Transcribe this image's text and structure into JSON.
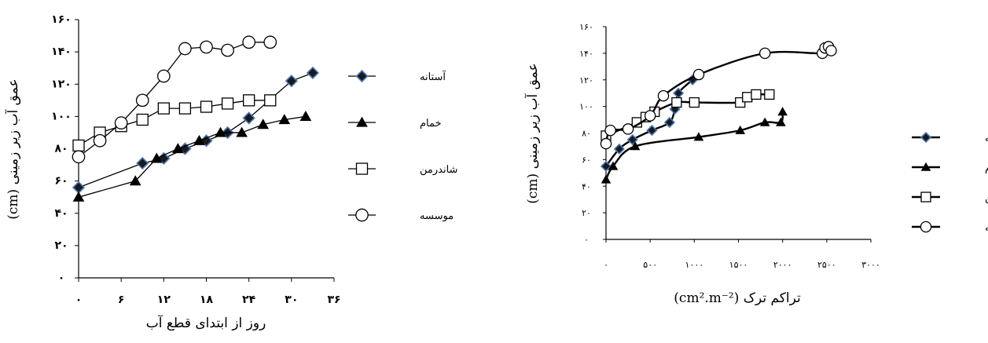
{
  "chart_data": [
    {
      "type": "line",
      "xlabel": "روز از ابتدای قطع آب",
      "ylabel": "عمق آب زیر زمینی (cm)",
      "xlim": [
        0,
        36
      ],
      "ylim": [
        0,
        160
      ],
      "x_ticks": [
        0,
        6,
        12,
        18,
        24,
        30,
        36
      ],
      "y_ticks": [
        0,
        20,
        40,
        60,
        80,
        100,
        120,
        140,
        160
      ],
      "x_tick_labels": [
        "۰",
        "۶",
        "۱۲",
        "۱۸",
        "۲۴",
        "۳۰",
        "۳۶"
      ],
      "y_tick_labels": [
        "۰",
        "۲۰",
        "۴۰",
        "۶۰",
        "۸۰",
        "۱۰۰",
        "۱۲۰",
        "۱۴۰",
        "۱۶۰"
      ],
      "legend_position": "right",
      "series": [
        {
          "name": "آستانه",
          "marker": "diamond",
          "x": [
            0,
            9,
            12,
            15,
            18,
            21,
            24,
            30,
            33
          ],
          "y": [
            56,
            71,
            74,
            80,
            85,
            90,
            99,
            122,
            127
          ]
        },
        {
          "name": "خمام",
          "marker": "triangle",
          "x": [
            0,
            8,
            11,
            14,
            17,
            20,
            23,
            26,
            29,
            32
          ],
          "y": [
            50,
            60,
            74,
            80,
            85,
            90,
            90,
            95,
            98,
            100
          ]
        },
        {
          "name": "شاندرمن",
          "marker": "square",
          "x": [
            0,
            3,
            6,
            9,
            12,
            15,
            18,
            21,
            24,
            27
          ],
          "y": [
            82,
            90,
            94,
            98,
            105,
            105,
            106,
            108,
            110,
            110
          ]
        },
        {
          "name": "موسسه",
          "marker": "circle",
          "x": [
            0,
            3,
            6,
            9,
            12,
            15,
            18,
            21,
            24,
            27
          ],
          "y": [
            75,
            85,
            96,
            110,
            125,
            142,
            143,
            141,
            146,
            146
          ]
        }
      ]
    },
    {
      "type": "line",
      "xlabel": "تراکم ترک (cm².m⁻²)",
      "ylabel": "عمق آب زیر زمینی (cm)",
      "xlim": [
        0,
        3000
      ],
      "ylim": [
        0,
        160
      ],
      "x_ticks": [
        0,
        500,
        1000,
        1500,
        2000,
        2500,
        3000
      ],
      "y_ticks": [
        0,
        20,
        40,
        60,
        80,
        100,
        120,
        140,
        160
      ],
      "x_tick_labels": [
        "۰",
        "۵۰۰",
        "۱۰۰۰",
        "۱۵۰۰",
        "۲۰۰۰",
        "۲۵۰۰",
        "۳۰۰۰"
      ],
      "y_tick_labels": [
        "۰",
        "۲۰",
        "۴۰",
        "۶۰",
        "۸۰",
        "۱۰۰",
        "۱۲۰",
        "۱۴۰",
        "۱۶۰"
      ],
      "legend_position": "right",
      "series": [
        {
          "name": "آستانه",
          "marker": "diamond",
          "x": [
            0,
            150,
            300,
            520,
            720,
            780,
            820,
            980
          ],
          "y": [
            55,
            68,
            75,
            82,
            88,
            98,
            110,
            120
          ]
        },
        {
          "name": "خمام",
          "marker": "triangle",
          "x": [
            0,
            80,
            330,
            1050,
            1520,
            1800,
            1980,
            2000
          ],
          "y": [
            45,
            55,
            70,
            77,
            82,
            88,
            88,
            96
          ]
        },
        {
          "name": "شاندرمن",
          "marker": "square",
          "x": [
            0,
            350,
            450,
            550,
            800,
            1000,
            1520,
            1600,
            1700,
            1850
          ],
          "y": [
            78,
            88,
            92,
            96,
            103,
            103,
            103,
            107,
            109,
            109
          ]
        },
        {
          "name": "موسسه",
          "marker": "circle",
          "x": [
            0,
            50,
            250,
            500,
            650,
            1050,
            1800,
            2450,
            2480,
            2520,
            2550
          ],
          "y": [
            72,
            82,
            83,
            93,
            108,
            124,
            140,
            140,
            144,
            145,
            142
          ]
        }
      ]
    }
  ]
}
